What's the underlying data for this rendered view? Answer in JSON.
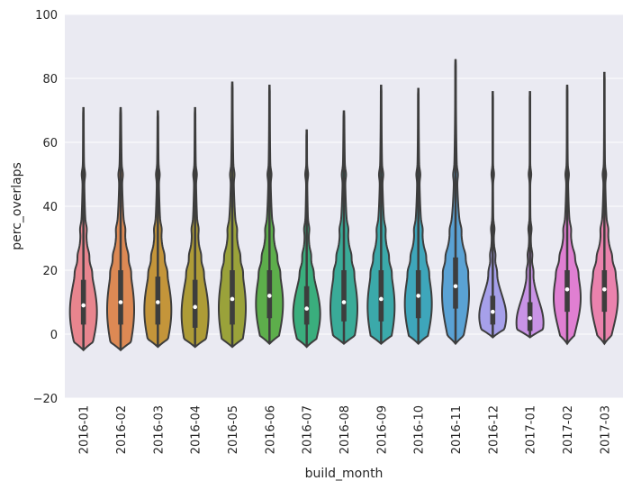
{
  "chart_data": {
    "type": "violin",
    "xlabel": "build_month",
    "ylabel": "perc_overlaps",
    "ylim": [
      -20,
      100
    ],
    "yticks": [
      -20,
      0,
      20,
      40,
      60,
      80,
      100
    ],
    "grid": true,
    "categories": [
      "2016-01",
      "2016-02",
      "2016-03",
      "2016-04",
      "2016-05",
      "2016-06",
      "2016-07",
      "2016-08",
      "2016-09",
      "2016-10",
      "2016-11",
      "2016-12",
      "2017-01",
      "2017-02",
      "2017-03"
    ],
    "series": [
      {
        "category": "2016-01",
        "color": "#e8858e",
        "min": -5,
        "max": 71,
        "q1": 3,
        "median": 9,
        "q3": 17
      },
      {
        "category": "2016-02",
        "color": "#dd8954",
        "min": -5,
        "max": 71,
        "q1": 3,
        "median": 10,
        "q3": 20
      },
      {
        "category": "2016-03",
        "color": "#c4953a",
        "min": -4,
        "max": 70,
        "q1": 3,
        "median": 10,
        "q3": 18
      },
      {
        "category": "2016-04",
        "color": "#ae9c37",
        "min": -4,
        "max": 71,
        "q1": 2,
        "median": 8.5,
        "q3": 17
      },
      {
        "category": "2016-05",
        "color": "#9aa23a",
        "min": -4,
        "max": 79,
        "q1": 3,
        "median": 11,
        "q3": 20
      },
      {
        "category": "2016-06",
        "color": "#5dae4b",
        "min": -3,
        "max": 78,
        "q1": 5,
        "median": 12,
        "q3": 20
      },
      {
        "category": "2016-07",
        "color": "#3aae7d",
        "min": -4,
        "max": 64,
        "q1": 3,
        "median": 8,
        "q3": 15
      },
      {
        "category": "2016-08",
        "color": "#3aab98",
        "min": -3,
        "max": 70,
        "q1": 4,
        "median": 10,
        "q3": 20
      },
      {
        "category": "2016-09",
        "color": "#3ba9aa",
        "min": -3,
        "max": 78,
        "q1": 4,
        "median": 11,
        "q3": 20
      },
      {
        "category": "2016-10",
        "color": "#3ea6bb",
        "min": -3,
        "max": 77,
        "q1": 5,
        "median": 12,
        "q3": 20
      },
      {
        "category": "2016-11",
        "color": "#5aa2d4",
        "min": -3,
        "max": 86,
        "q1": 8,
        "median": 15,
        "q3": 24
      },
      {
        "category": "2016-12",
        "color": "#a6a0ea",
        "min": -1,
        "max": 76,
        "q1": 3,
        "median": 7,
        "q3": 12
      },
      {
        "category": "2017-01",
        "color": "#c993e6",
        "min": -1,
        "max": 76,
        "q1": 1,
        "median": 5,
        "q3": 10
      },
      {
        "category": "2017-02",
        "color": "#e07fd2",
        "min": -3,
        "max": 78,
        "q1": 7,
        "median": 14,
        "q3": 20
      },
      {
        "category": "2017-03",
        "color": "#ea82ad",
        "min": -3,
        "max": 82,
        "q1": 7,
        "median": 14,
        "q3": 20
      }
    ]
  }
}
